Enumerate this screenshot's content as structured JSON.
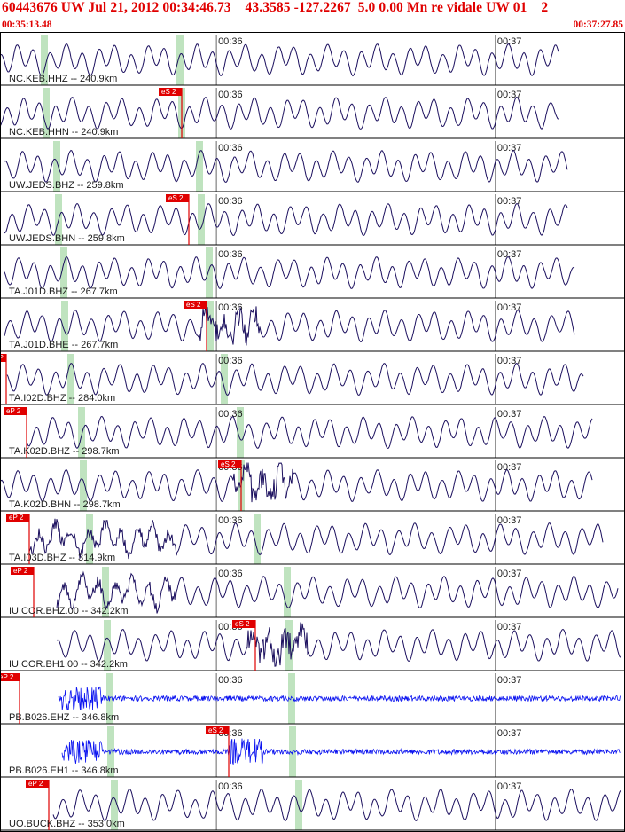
{
  "header": {
    "title": "60443676 UW Jul 21, 2012 00:34:46.73    43.3585 -127.2267  5.0 0.00 Mn re vidale UW 01    2",
    "start_time": "00:35:13.48",
    "end_time": "00:37:27.85"
  },
  "colors": {
    "header_text": "#e00000",
    "trace_broadband": "#1b0f5e",
    "trace_short_period": "#0a12f0",
    "pick_marker": "#e00000",
    "window_band": "#bfe3bf",
    "panel_border": "#000000"
  },
  "chart_data": {
    "type": "line",
    "title": "60443676 UW Jul 21, 2012 00:34:46.73    43.3585 -127.2267  5.0 0.00 Mn re vidale UW 01    2",
    "xlabel": "",
    "ylabel": "",
    "x_range": [
      "00:35:13.48",
      "00:37:27.85"
    ],
    "x_ticks": [
      "00:36",
      "00:37"
    ],
    "grid": false,
    "series": [
      {
        "name": "NC.KEB.HHZ -- 240.9km",
        "band": "broadband",
        "pick": null,
        "amp_style": "low"
      },
      {
        "name": "NC.KEB.HHN -- 240.9km",
        "band": "broadband",
        "pick": "eS 2",
        "amp_style": "low"
      },
      {
        "name": "UW.JEDS.BHZ -- 259.8km",
        "band": "broadband",
        "pick": null,
        "amp_style": "low"
      },
      {
        "name": "UW.JEDS.BHN -- 259.8km",
        "band": "broadband",
        "pick": "eS 2",
        "amp_style": "low"
      },
      {
        "name": "TA.J01D.BHZ -- 267.7km",
        "band": "broadband",
        "pick": null,
        "amp_style": "low"
      },
      {
        "name": "TA.J01D.BHE -- 267.7km",
        "band": "broadband",
        "pick": "eS 2",
        "amp_style": "burst"
      },
      {
        "name": "TA.I02D.BHZ -- 284.0km",
        "band": "broadband",
        "pick": "eP",
        "amp_style": "low"
      },
      {
        "name": "TA.K02D.BHZ -- 298.7km",
        "band": "broadband",
        "pick": "eP 2",
        "amp_style": "low"
      },
      {
        "name": "TA.K02D.BHN -- 298.7km",
        "band": "broadband",
        "pick": "eS 2",
        "amp_style": "burst"
      },
      {
        "name": "TA.I03D.BHZ -- 314.9km",
        "band": "broadband",
        "pick": "eP 2",
        "amp_style": "noisy"
      },
      {
        "name": "IU.COR.BHZ.00 -- 342.2km",
        "band": "broadband",
        "pick": "eP 2",
        "amp_style": "noisy"
      },
      {
        "name": "IU.COR.BH1.00 -- 342.2km",
        "band": "broadband",
        "pick": "eS 2",
        "amp_style": "burst"
      },
      {
        "name": "PB.B026.EHZ -- 346.8km",
        "band": "short_period",
        "pick": "eP 2",
        "amp_style": "hf"
      },
      {
        "name": "PB.B026.EH1 -- 346.8km",
        "band": "short_period",
        "pick": "eS 2",
        "amp_style": "hf"
      },
      {
        "name": "UO.BUCK.BHZ -- 353.0km",
        "band": "broadband",
        "pick": "eP 2",
        "amp_style": "low"
      }
    ]
  }
}
